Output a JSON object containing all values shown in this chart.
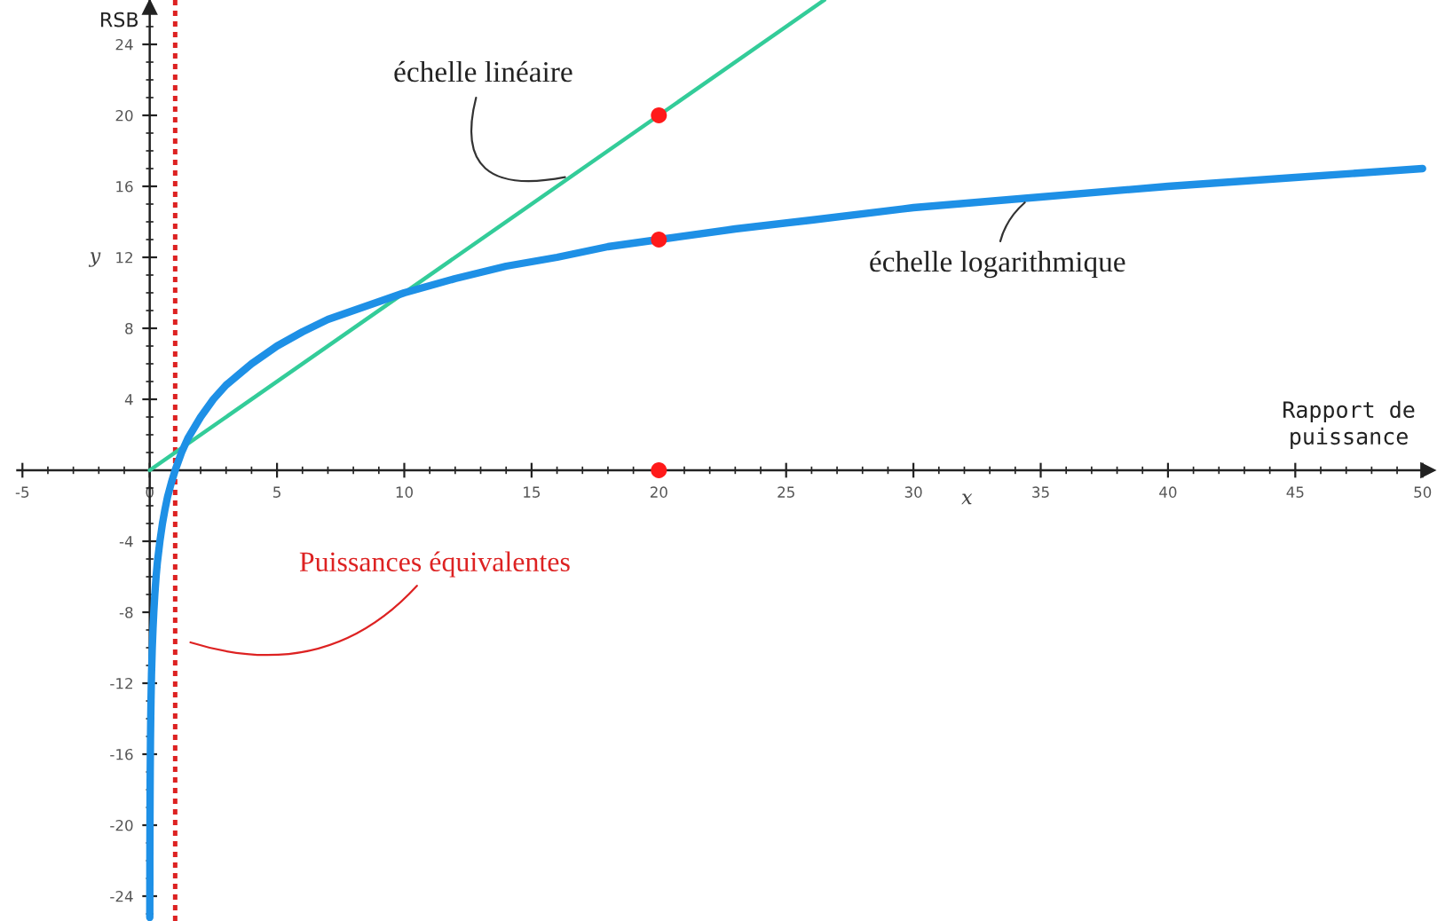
{
  "chart_data": {
    "type": "line",
    "xlabel": "Rapport de puissance",
    "ylabel": "RSB",
    "annotations": [
      "x",
      "y"
    ],
    "xlim": [
      -5.2,
      50.2
    ],
    "ylim": [
      -25.4,
      26.5
    ],
    "xticks": [
      -5,
      0,
      5,
      10,
      15,
      20,
      25,
      30,
      35,
      40,
      45,
      50
    ],
    "yticks": [
      -24,
      -20,
      -16,
      -12,
      -8,
      -4,
      4,
      8,
      12,
      16,
      20,
      24
    ],
    "series": [
      {
        "name": "échelle linéaire",
        "color": "#33cc99",
        "x": [
          0,
          26.5
        ],
        "values": [
          0,
          26.5
        ]
      },
      {
        "name": "échelle logarithmique",
        "color": "#1e90e6",
        "x": [
          0.003,
          0.004,
          0.005,
          0.007,
          0.01,
          0.015,
          0.02,
          0.03,
          0.04,
          0.05,
          0.07,
          0.1,
          0.13,
          0.16,
          0.2,
          0.25,
          0.3,
          0.4,
          0.5,
          0.6,
          0.7,
          0.85,
          1,
          1.25,
          1.5,
          1.75,
          2,
          2.5,
          3,
          3.5,
          4,
          4.5,
          5,
          6,
          7,
          8,
          9,
          10,
          11,
          12,
          14,
          16,
          18,
          20,
          23,
          26,
          30,
          35,
          40,
          45,
          50
        ],
        "values": [
          -25.2,
          -24,
          -23,
          -21.5,
          -20,
          -18.2,
          -17,
          -15.2,
          -14,
          -13,
          -11.5,
          -10,
          -8.9,
          -8,
          -7,
          -6,
          -5.2,
          -4,
          -3,
          -2.2,
          -1.5,
          -0.7,
          0,
          1,
          1.8,
          2.4,
          3,
          4,
          4.8,
          5.4,
          6,
          6.5,
          7,
          7.8,
          8.5,
          9,
          9.5,
          10,
          10.4,
          10.8,
          11.5,
          12,
          12.6,
          13,
          13.6,
          14.1,
          14.8,
          15.4,
          16,
          16.5,
          17
        ]
      },
      {
        "type": "scatter",
        "color": "#ff1a1a",
        "marker": "circle",
        "x": [
          20,
          20,
          20
        ],
        "values": [
          20,
          13,
          0
        ]
      }
    ],
    "ref_lines": [
      {
        "axis": "x",
        "value": 1,
        "label": "Puissances équivalentes",
        "color": "#dd2222",
        "line_style": "dotted"
      }
    ]
  }
}
